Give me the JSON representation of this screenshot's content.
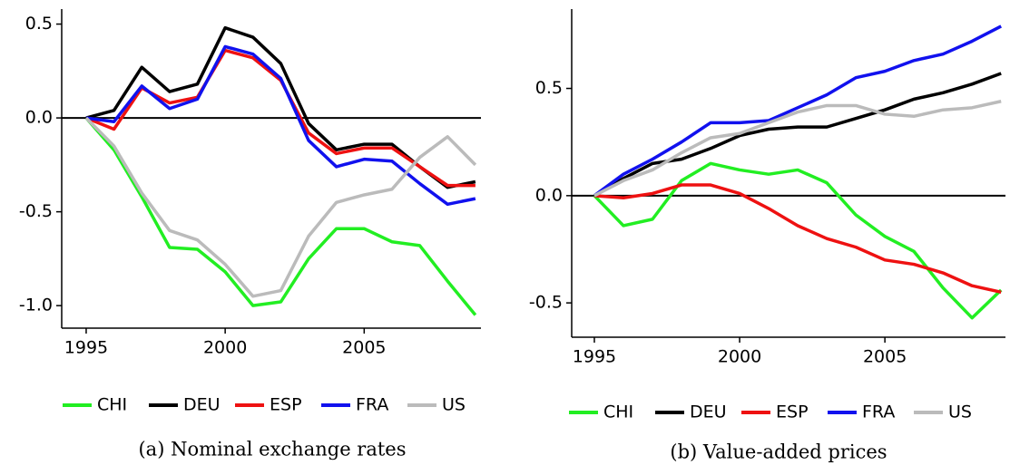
{
  "chart_data": [
    {
      "type": "line",
      "caption": "(a) Nominal exchange rates",
      "x": [
        1995,
        1996,
        1997,
        1998,
        1999,
        2000,
        2001,
        2002,
        2003,
        2004,
        2005,
        2006,
        2007,
        2008,
        2009
      ],
      "series": [
        {
          "name": "CHI",
          "color": "#22ee22",
          "values": [
            0,
            -0.17,
            -0.42,
            -0.69,
            -0.7,
            -0.82,
            -1.0,
            -0.98,
            -0.75,
            -0.59,
            -0.59,
            -0.66,
            -0.68,
            -0.87,
            -1.05
          ]
        },
        {
          "name": "DEU",
          "color": "#000000",
          "values": [
            0,
            0.04,
            0.27,
            0.14,
            0.18,
            0.48,
            0.43,
            0.29,
            -0.03,
            -0.17,
            -0.14,
            -0.14,
            -0.26,
            -0.37,
            -0.34
          ]
        },
        {
          "name": "ESP",
          "color": "#ee1111",
          "values": [
            0,
            -0.06,
            0.16,
            0.08,
            0.11,
            0.36,
            0.32,
            0.2,
            -0.08,
            -0.19,
            -0.16,
            -0.16,
            -0.26,
            -0.36,
            -0.36
          ]
        },
        {
          "name": "FRA",
          "color": "#1111ee",
          "values": [
            0,
            -0.02,
            0.17,
            0.05,
            0.1,
            0.38,
            0.34,
            0.21,
            -0.12,
            -0.26,
            -0.22,
            -0.23,
            -0.35,
            -0.46,
            -0.43
          ]
        },
        {
          "name": "US",
          "color": "#bbbbbb",
          "values": [
            0,
            -0.15,
            -0.4,
            -0.6,
            -0.65,
            -0.78,
            -0.95,
            -0.92,
            -0.63,
            -0.45,
            -0.41,
            -0.38,
            -0.21,
            -0.1,
            -0.25
          ]
        }
      ],
      "xlim": [
        1994.12,
        2009.2
      ],
      "xticks": [
        1995,
        2000,
        2005
      ],
      "ylim": [
        -1.12,
        0.58
      ],
      "yticks": [
        {
          "value": -1.0,
          "label": "-1.0"
        },
        -0.5,
        {
          "value": 0,
          "label": "0.0"
        },
        0.5
      ],
      "hline": 0,
      "legend": "bottom"
    },
    {
      "type": "line",
      "caption": "(b) Value-added prices",
      "x": [
        1995,
        1996,
        1997,
        1998,
        1999,
        2000,
        2001,
        2002,
        2003,
        2004,
        2005,
        2006,
        2007,
        2008,
        2009
      ],
      "series": [
        {
          "name": "CHI",
          "color": "#22ee22",
          "values": [
            0,
            -0.14,
            -0.11,
            0.07,
            0.15,
            0.12,
            0.1,
            0.12,
            0.06,
            -0.09,
            -0.19,
            -0.26,
            -0.43,
            -0.57,
            -0.44
          ]
        },
        {
          "name": "DEU",
          "color": "#000000",
          "values": [
            0,
            0.08,
            0.15,
            0.17,
            0.22,
            0.28,
            0.31,
            0.32,
            0.32,
            0.36,
            0.4,
            0.45,
            0.48,
            0.52,
            0.57
          ]
        },
        {
          "name": "ESP",
          "color": "#ee1111",
          "values": [
            0,
            -0.01,
            0.01,
            0.05,
            0.05,
            0.01,
            -0.06,
            -0.14,
            -0.2,
            -0.24,
            -0.3,
            -0.32,
            -0.36,
            -0.42,
            -0.45
          ]
        },
        {
          "name": "FRA",
          "color": "#1111ee",
          "values": [
            0,
            0.1,
            0.17,
            0.25,
            0.34,
            0.34,
            0.35,
            0.41,
            0.47,
            0.55,
            0.58,
            0.63,
            0.66,
            0.72,
            0.79
          ]
        },
        {
          "name": "US",
          "color": "#bbbbbb",
          "values": [
            0,
            0.07,
            0.12,
            0.2,
            0.27,
            0.29,
            0.34,
            0.39,
            0.42,
            0.42,
            0.38,
            0.37,
            0.4,
            0.41,
            0.44
          ]
        }
      ],
      "xlim": [
        1994.22,
        2009.15
      ],
      "xticks": [
        1995,
        2000,
        2005
      ],
      "ylim": [
        -0.66,
        0.87
      ],
      "yticks": [
        -0.5,
        {
          "value": 0,
          "label": "0.0"
        },
        0.5
      ],
      "hline": 0,
      "legend": "bottom"
    }
  ]
}
